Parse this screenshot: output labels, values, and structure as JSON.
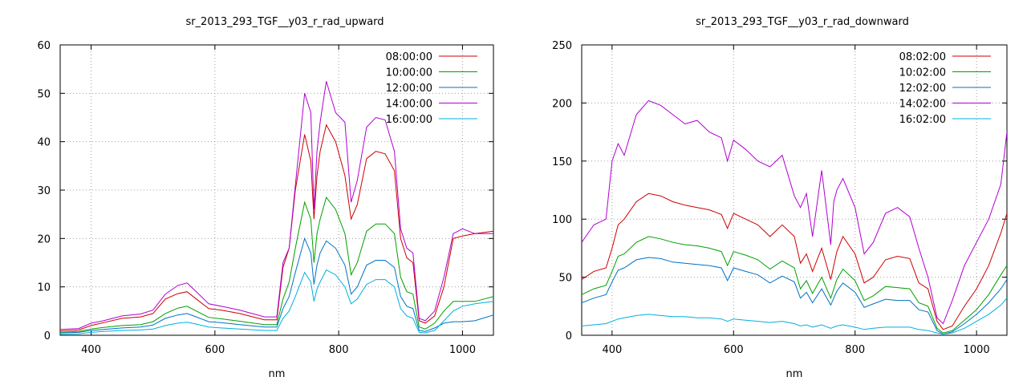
{
  "chart_data": [
    {
      "type": "line",
      "title": "sr_2013_293_TGF__y03_r_rad_upward",
      "xlabel": "nm",
      "ylabel": "",
      "xlim": [
        350,
        1050
      ],
      "ylim": [
        0,
        60
      ],
      "x_ticks": [
        400,
        600,
        800,
        1000
      ],
      "y_ticks": [
        0,
        10,
        20,
        30,
        40,
        50,
        60
      ],
      "grid": true,
      "legend_position": "top-right",
      "series": [
        {
          "name": "08:00:00",
          "color": "#cc0000",
          "x": [
            350,
            380,
            400,
            420,
            450,
            480,
            500,
            520,
            540,
            555,
            570,
            590,
            610,
            640,
            680,
            700,
            710,
            720,
            730,
            745,
            755,
            760,
            765,
            770,
            780,
            795,
            810,
            820,
            830,
            845,
            860,
            875,
            890,
            900,
            910,
            920,
            930,
            940,
            955,
            970,
            985,
            1000,
            1020,
            1050
          ],
          "y": [
            0.9,
            1.1,
            2.0,
            2.6,
            3.5,
            3.8,
            4.5,
            7.5,
            8.6,
            9.0,
            7.5,
            5.5,
            5.2,
            4.5,
            3.2,
            3.2,
            14,
            18,
            30,
            41.5,
            36,
            24,
            33,
            38,
            43.5,
            40,
            33,
            24,
            27,
            36.5,
            38,
            37.5,
            34,
            20,
            16,
            15,
            3.0,
            2.5,
            4,
            10,
            20,
            20.5,
            21,
            21.5
          ]
        },
        {
          "name": "10:00:00",
          "color": "#00a000",
          "x": [
            350,
            380,
            400,
            420,
            450,
            480,
            500,
            520,
            540,
            555,
            570,
            590,
            610,
            640,
            680,
            700,
            710,
            720,
            730,
            745,
            755,
            760,
            765,
            770,
            780,
            795,
            810,
            820,
            830,
            845,
            860,
            875,
            890,
            900,
            910,
            920,
            930,
            940,
            955,
            970,
            985,
            1000,
            1020,
            1050
          ],
          "y": [
            0.6,
            0.8,
            1.3,
            1.6,
            2.0,
            2.2,
            2.8,
            4.5,
            5.6,
            6.0,
            5.0,
            3.7,
            3.4,
            2.9,
            2.2,
            2.2,
            7.5,
            11,
            18,
            27.5,
            24,
            15,
            21,
            24,
            28.5,
            26,
            21,
            12.5,
            15,
            21.5,
            23,
            23,
            21,
            12,
            9,
            8.5,
            1.7,
            1.3,
            2.5,
            5,
            7,
            7,
            7,
            8
          ]
        },
        {
          "name": "12:00:00",
          "color": "#0072c6",
          "x": [
            350,
            380,
            400,
            420,
            450,
            480,
            500,
            520,
            540,
            555,
            570,
            590,
            610,
            640,
            680,
            700,
            710,
            720,
            730,
            745,
            755,
            760,
            765,
            770,
            780,
            795,
            810,
            820,
            830,
            845,
            860,
            875,
            890,
            900,
            910,
            920,
            930,
            940,
            955,
            970,
            985,
            1000,
            1020,
            1050
          ],
          "y": [
            0.5,
            0.6,
            1.0,
            1.2,
            1.5,
            1.7,
            2.1,
            3.5,
            4.2,
            4.5,
            3.8,
            2.8,
            2.6,
            2.2,
            1.7,
            1.7,
            5.5,
            8,
            13,
            20,
            17,
            10.5,
            14.5,
            17,
            19.5,
            18,
            14.5,
            8.5,
            10,
            14.5,
            15.5,
            15.5,
            14,
            8,
            6,
            5.5,
            1.0,
            0.8,
            1.5,
            2.5,
            2.8,
            2.8,
            3,
            4.2
          ]
        },
        {
          "name": "14:00:00",
          "color": "#b000d0",
          "x": [
            350,
            380,
            400,
            420,
            450,
            480,
            500,
            520,
            540,
            555,
            570,
            590,
            610,
            640,
            680,
            700,
            710,
            720,
            730,
            745,
            755,
            760,
            765,
            770,
            780,
            795,
            810,
            820,
            830,
            845,
            860,
            875,
            890,
            900,
            910,
            920,
            930,
            940,
            955,
            970,
            985,
            1000,
            1020,
            1050
          ],
          "y": [
            1.2,
            1.4,
            2.5,
            3.0,
            4.0,
            4.4,
            5.2,
            8.5,
            10.3,
            10.8,
            9.0,
            6.5,
            6.0,
            5.2,
            3.8,
            3.8,
            15,
            18,
            31,
            50,
            46,
            26,
            38,
            44,
            52.5,
            46,
            44,
            27.5,
            32,
            43,
            45,
            44.5,
            38,
            22,
            18,
            17,
            3.5,
            3.0,
            5,
            12,
            21,
            22,
            21,
            21
          ]
        },
        {
          "name": "16:00:00",
          "color": "#00b0e0",
          "x": [
            350,
            380,
            400,
            420,
            450,
            480,
            500,
            520,
            540,
            555,
            570,
            590,
            610,
            640,
            680,
            700,
            710,
            720,
            730,
            745,
            755,
            760,
            765,
            770,
            780,
            795,
            810,
            820,
            830,
            845,
            860,
            875,
            890,
            900,
            910,
            920,
            930,
            940,
            955,
            970,
            985,
            1000,
            1020,
            1050
          ],
          "y": [
            0.2,
            0.3,
            0.6,
            0.8,
            1.0,
            1.1,
            1.3,
            2.0,
            2.5,
            2.7,
            2.3,
            1.7,
            1.5,
            1.3,
            1.0,
            1.0,
            3.5,
            5,
            8,
            13,
            11,
            7,
            9.5,
            11,
            13.5,
            12.5,
            10,
            6.5,
            7.5,
            10.5,
            11.5,
            11.5,
            10,
            5.5,
            4,
            3.5,
            0.6,
            0.5,
            1,
            3,
            5,
            6,
            6.5,
            7
          ]
        }
      ]
    },
    {
      "type": "line",
      "title": "sr_2013_293_TGF__y03_r_rad_downward",
      "xlabel": "nm",
      "ylabel": "",
      "xlim": [
        350,
        1050
      ],
      "ylim": [
        0,
        250
      ],
      "x_ticks": [
        400,
        600,
        800,
        1000
      ],
      "y_ticks": [
        0,
        50,
        100,
        150,
        200,
        250
      ],
      "grid": true,
      "legend_position": "top-right",
      "series": [
        {
          "name": "08:02:00",
          "color": "#cc0000",
          "x": [
            350,
            370,
            390,
            400,
            410,
            420,
            440,
            460,
            480,
            500,
            520,
            540,
            560,
            580,
            590,
            600,
            620,
            640,
            660,
            680,
            700,
            710,
            720,
            730,
            745,
            760,
            765,
            770,
            780,
            800,
            815,
            830,
            850,
            870,
            890,
            905,
            920,
            935,
            945,
            960,
            980,
            1000,
            1020,
            1040,
            1050
          ],
          "y": [
            48,
            55,
            58,
            75,
            95,
            100,
            115,
            122,
            120,
            115,
            112,
            110,
            108,
            104,
            92,
            105,
            100,
            95,
            85,
            95,
            85,
            62,
            70,
            55,
            75,
            48,
            60,
            72,
            85,
            70,
            45,
            50,
            65,
            68,
            66,
            45,
            40,
            12,
            5,
            8,
            25,
            40,
            60,
            88,
            105
          ]
        },
        {
          "name": "10:02:00",
          "color": "#00a000",
          "x": [
            350,
            370,
            390,
            400,
            410,
            420,
            440,
            460,
            480,
            500,
            520,
            540,
            560,
            580,
            590,
            600,
            620,
            640,
            660,
            680,
            700,
            710,
            720,
            730,
            745,
            760,
            765,
            770,
            780,
            800,
            815,
            830,
            850,
            870,
            890,
            905,
            920,
            935,
            945,
            960,
            980,
            1000,
            1020,
            1040,
            1050
          ],
          "y": [
            35,
            40,
            43,
            55,
            68,
            70,
            80,
            85,
            83,
            80,
            78,
            77,
            75,
            72,
            60,
            72,
            69,
            65,
            57,
            64,
            58,
            40,
            47,
            36,
            50,
            32,
            40,
            48,
            57,
            47,
            30,
            34,
            42,
            41,
            40,
            28,
            25,
            6,
            2,
            4,
            13,
            22,
            35,
            52,
            60
          ]
        },
        {
          "name": "12:02:00",
          "color": "#0072c6",
          "x": [
            350,
            370,
            390,
            400,
            410,
            420,
            440,
            460,
            480,
            500,
            520,
            540,
            560,
            580,
            590,
            600,
            620,
            640,
            660,
            680,
            700,
            710,
            720,
            730,
            745,
            760,
            765,
            770,
            780,
            800,
            815,
            830,
            850,
            870,
            890,
            905,
            920,
            935,
            945,
            960,
            980,
            1000,
            1020,
            1040,
            1050
          ],
          "y": [
            28,
            32,
            35,
            46,
            56,
            58,
            65,
            67,
            66,
            63,
            62,
            61,
            60,
            58,
            47,
            58,
            55,
            52,
            45,
            51,
            46,
            32,
            37,
            28,
            40,
            26,
            32,
            38,
            45,
            37,
            24,
            27,
            31,
            30,
            30,
            22,
            20,
            4,
            1,
            3,
            10,
            18,
            28,
            40,
            48
          ]
        },
        {
          "name": "14:02:00",
          "color": "#b000d0",
          "x": [
            350,
            370,
            390,
            400,
            410,
            420,
            440,
            460,
            480,
            500,
            520,
            540,
            560,
            580,
            590,
            600,
            620,
            640,
            660,
            680,
            700,
            710,
            720,
            730,
            745,
            760,
            765,
            770,
            780,
            800,
            815,
            830,
            850,
            870,
            890,
            905,
            920,
            935,
            945,
            960,
            980,
            1000,
            1020,
            1040,
            1050
          ],
          "y": [
            80,
            95,
            100,
            150,
            165,
            155,
            190,
            202,
            198,
            190,
            182,
            185,
            175,
            170,
            150,
            168,
            160,
            150,
            145,
            155,
            120,
            110,
            122,
            85,
            142,
            78,
            115,
            125,
            135,
            110,
            70,
            80,
            105,
            110,
            102,
            75,
            50,
            15,
            10,
            30,
            60,
            80,
            100,
            130,
            175
          ]
        },
        {
          "name": "16:02:00",
          "color": "#00b0e0",
          "x": [
            350,
            370,
            390,
            400,
            410,
            420,
            440,
            460,
            480,
            500,
            520,
            540,
            560,
            580,
            590,
            600,
            620,
            640,
            660,
            680,
            700,
            710,
            720,
            730,
            745,
            760,
            765,
            770,
            780,
            800,
            815,
            830,
            850,
            870,
            890,
            905,
            920,
            935,
            945,
            960,
            980,
            1000,
            1020,
            1040,
            1050
          ],
          "y": [
            8,
            9,
            10,
            12,
            14,
            15,
            17,
            18,
            17,
            16,
            16,
            15,
            15,
            14,
            12,
            14,
            13,
            12,
            11,
            12,
            10,
            8,
            9,
            7,
            9,
            6,
            7,
            8,
            9,
            7,
            5,
            6,
            7,
            7,
            7,
            5,
            4,
            2,
            1,
            2,
            6,
            12,
            18,
            26,
            32
          ]
        }
      ]
    }
  ]
}
